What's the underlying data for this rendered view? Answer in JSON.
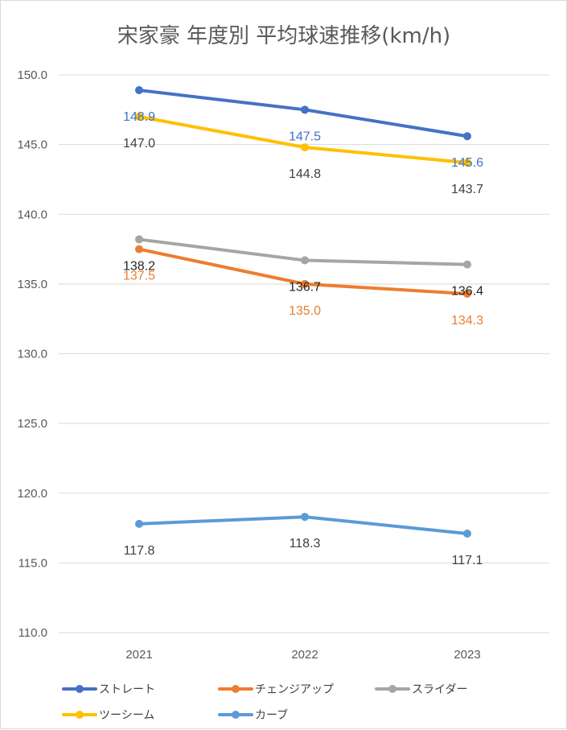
{
  "chart_data": {
    "type": "line",
    "title": "宋家豪 年度別 平均球速推移(km/h)",
    "categories": [
      "2021",
      "2022",
      "2023"
    ],
    "ylim": [
      110.0,
      150.0
    ],
    "yticks": [
      "110.0",
      "115.0",
      "120.0",
      "125.0",
      "130.0",
      "135.0",
      "140.0",
      "145.0",
      "150.0"
    ],
    "grid": true,
    "legend_position": "bottom",
    "series": [
      {
        "name": "ストレート",
        "color": "#4472C4",
        "values": [
          148.9,
          147.5,
          145.6
        ],
        "labels": [
          "148.9",
          "147.5",
          "145.6"
        ],
        "label_color": "#4472C4",
        "label_position": "below"
      },
      {
        "name": "チェンジアップ",
        "color": "#ED7D31",
        "values": [
          137.5,
          135.0,
          134.3
        ],
        "labels": [
          "137.5",
          "135.0",
          "134.3"
        ],
        "label_color": "#ED7D31",
        "label_position": "below"
      },
      {
        "name": "スライダー",
        "color": "#A5A5A5",
        "values": [
          138.2,
          136.7,
          136.4
        ],
        "labels": [
          "138.2",
          "136.7",
          "136.4"
        ],
        "label_color": "#262626",
        "label_position": "below"
      },
      {
        "name": "ツーシーム",
        "color": "#FFC000",
        "values": [
          147.0,
          144.8,
          143.7
        ],
        "labels": [
          "147.0",
          "144.8",
          "143.7"
        ],
        "label_color": "#404040",
        "label_position": "below"
      },
      {
        "name": "カーブ",
        "color": "#5B9BD5",
        "values": [
          117.8,
          118.3,
          117.1
        ],
        "labels": [
          "117.8",
          "118.3",
          "117.1"
        ],
        "label_color": "#404040",
        "label_position": "below"
      }
    ]
  }
}
